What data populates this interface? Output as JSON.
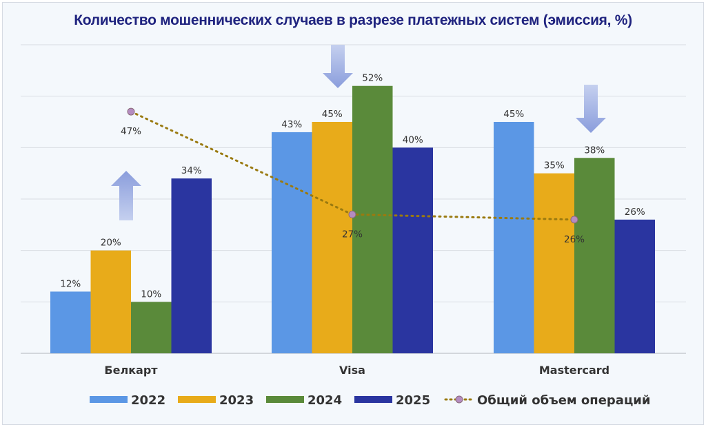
{
  "chart_data": {
    "type": "bar",
    "title": "Количество мошеннических случаев в разрезе платежных систем (эмиссия, %)",
    "categories": [
      "Белкарт",
      "Visa",
      "Mastercard"
    ],
    "ylim": [
      0,
      60
    ],
    "grid": true,
    "legend_position": "bottom",
    "series": [
      {
        "name": "2022",
        "type": "bar",
        "color": "#5b97e5",
        "values": [
          12,
          43,
          45
        ],
        "labels": [
          "12%",
          "43%",
          "45%"
        ]
      },
      {
        "name": "2023",
        "type": "bar",
        "color": "#e8ab1a",
        "values": [
          20,
          45,
          35
        ],
        "labels": [
          "20%",
          "45%",
          "35%"
        ]
      },
      {
        "name": "2024",
        "type": "bar",
        "color": "#5a8a3a",
        "values": [
          10,
          52,
          38
        ],
        "labels": [
          "10%",
          "52%",
          "38%"
        ]
      },
      {
        "name": "2025",
        "type": "bar",
        "color": "#2a35a0",
        "values": [
          34,
          40,
          26
        ],
        "labels": [
          "34%",
          "40%",
          "26%"
        ]
      },
      {
        "name": "Общий объем операций",
        "type": "line",
        "color": "#9a7a10",
        "marker_color": "#b48cc0",
        "values": [
          47,
          27,
          26
        ],
        "labels": [
          "47%",
          "27%",
          "26%"
        ]
      }
    ],
    "trend_arrows": [
      {
        "category": "Белкарт",
        "direction": "up"
      },
      {
        "category": "Visa",
        "direction": "down"
      },
      {
        "category": "Mastercard",
        "direction": "down"
      }
    ]
  }
}
